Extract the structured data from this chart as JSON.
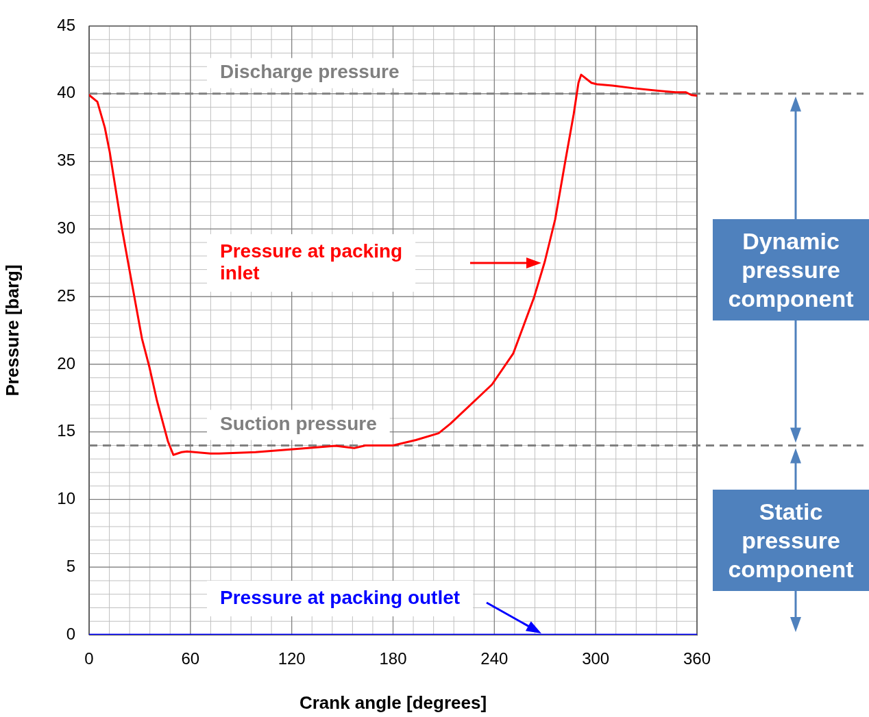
{
  "chart_data": {
    "type": "line",
    "xlabel": "Crank angle [degrees]",
    "ylabel": "Pressure [barg]",
    "xlim": [
      0,
      360
    ],
    "xticks": [
      0,
      60,
      120,
      180,
      240,
      300,
      360
    ],
    "ylim": [
      0,
      45
    ],
    "yticks": [
      0,
      5,
      10,
      15,
      20,
      25,
      30,
      35,
      40,
      45
    ],
    "grid": true,
    "legend": false,
    "marker": "none",
    "line_style": "solid",
    "series": [
      {
        "color": "#ff0000",
        "x": [
          0,
          4.9,
          9.3,
          12.2,
          19.5,
          24,
          31.3,
          35.7,
          40.2,
          46.7,
          49.9,
          54.8,
          58,
          71.8,
          77,
          98.6,
          125.8,
          146,
          157,
          163.6,
          180,
          193.6,
          207,
          213.9,
          238.6,
          251.2,
          263.4,
          269.9,
          276,
          282,
          287,
          289.8,
          291.4,
          297.5,
          300.7,
          310,
          322.6,
          338,
          347.4,
          353.5,
          356.7,
          360
        ],
        "values": [
          39.9,
          39.4,
          37.5,
          35.7,
          30.0,
          26.9,
          21.9,
          19.8,
          17.3,
          14.3,
          13.3,
          13.5,
          13.55,
          13.4,
          13.4,
          13.5,
          13.77,
          13.97,
          13.8,
          14.0,
          14.0,
          14.4,
          14.9,
          15.6,
          18.5,
          20.8,
          24.9,
          27.6,
          30.7,
          35.0,
          38.5,
          40.8,
          41.4,
          40.8,
          40.7,
          40.6,
          40.4,
          40.2,
          40.1,
          40.1,
          39.9,
          39.85
        ]
      },
      {
        "color": "#0000ff",
        "x": [
          0,
          360
        ],
        "values": [
          0,
          0
        ]
      }
    ],
    "ref_lines": [
      {
        "axis": "y",
        "value": 40,
        "label": "Discharge pressure",
        "color": "#808080",
        "line_style": "dashed"
      },
      {
        "axis": "y",
        "value": 14,
        "label": "Suction pressure",
        "color": "#808080",
        "line_style": "dashed"
      }
    ],
    "annotations": [
      "Pressure at packing inlet",
      "Pressure at packing outlet",
      "Dynamic pressure component",
      "Static pressure component"
    ]
  }
}
